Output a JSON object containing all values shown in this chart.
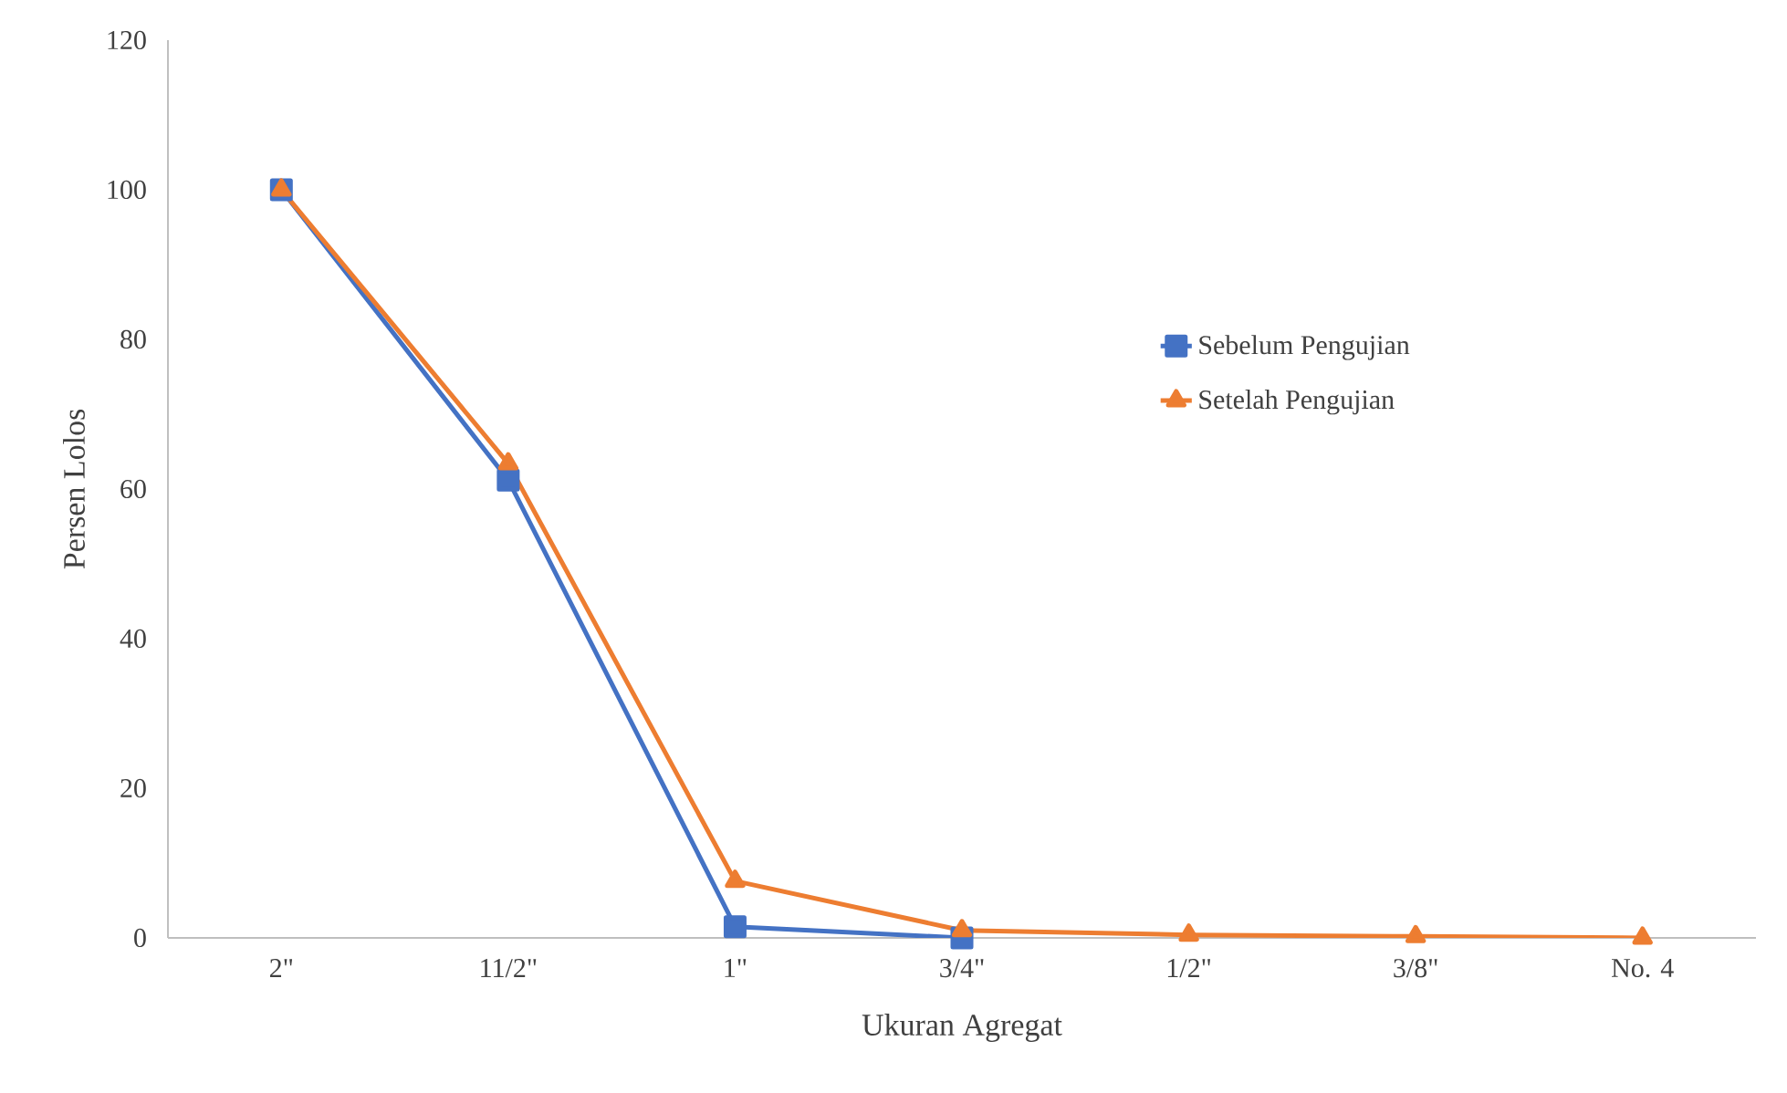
{
  "chart_data": {
    "type": "line",
    "xlabel": "Ukuran Agregat",
    "ylabel": "Persen Lolos",
    "categories": [
      "2\"",
      "11/2\"",
      "1\"",
      "3/4\"",
      "1/2\"",
      "3/8\"",
      "No. 4"
    ],
    "series": [
      {
        "name": "Sebelum Pengujian",
        "color": "#4472c4",
        "marker": "square",
        "values": [
          100,
          61.2,
          1.5,
          0,
          null,
          null,
          null
        ]
      },
      {
        "name": "Setelah Pengujian",
        "color": "#ed7d31",
        "marker": "triangle",
        "values": [
          100,
          63.4,
          7.6,
          1.0,
          0.4,
          0.2,
          0
        ]
      }
    ],
    "ylim": [
      0,
      120
    ],
    "yticks": [
      0,
      20,
      40,
      60,
      80,
      100,
      120
    ],
    "grid": false,
    "legend": "right"
  }
}
